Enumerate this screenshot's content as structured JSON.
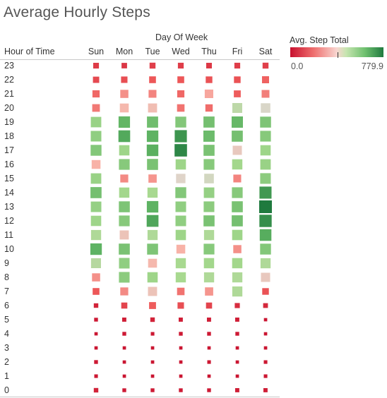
{
  "title": "Average Hourly Steps",
  "column_header": "Day Of Week",
  "row_header": "Hour of Time",
  "legend": {
    "title": "Avg. Step Total",
    "min_label": "0.0",
    "max_label": "779.9",
    "min": 0,
    "max": 779.9
  },
  "colors": {
    "low": "#c8102e",
    "mid": "#f5ded8",
    "high": "#1f7a3e"
  },
  "chart_data": {
    "type": "heatmap",
    "title": "Average Hourly Steps",
    "xlabel": "Day Of Week",
    "ylabel": "Hour of Time",
    "measure": "Avg. Step Total",
    "range": [
      0,
      779.9
    ],
    "days": [
      "Sun",
      "Mon",
      "Tue",
      "Wed",
      "Thu",
      "Fri",
      "Sat"
    ],
    "hours": [
      "23",
      "22",
      "21",
      "20",
      "19",
      "18",
      "17",
      "16",
      "15",
      "14",
      "13",
      "12",
      "11",
      "10",
      "9",
      "8",
      "7",
      "6",
      "5",
      "4",
      "3",
      "2",
      "1",
      "0"
    ],
    "values": [
      [
        90,
        80,
        100,
        95,
        85,
        95,
        100
      ],
      [
        120,
        130,
        150,
        150,
        140,
        140,
        170
      ],
      [
        180,
        250,
        230,
        180,
        290,
        160,
        220
      ],
      [
        210,
        320,
        330,
        200,
        190,
        420,
        380
      ],
      [
        480,
        600,
        570,
        530,
        560,
        590,
        540
      ],
      [
        500,
        640,
        610,
        700,
        580,
        560,
        520
      ],
      [
        530,
        470,
        620,
        740,
        550,
        350,
        470
      ],
      [
        310,
        520,
        550,
        470,
        520,
        460,
        480
      ],
      [
        480,
        240,
        260,
        370,
        390,
        230,
        510
      ],
      [
        560,
        460,
        450,
        530,
        490,
        520,
        690
      ],
      [
        490,
        540,
        610,
        500,
        510,
        550,
        779.9
      ],
      [
        470,
        520,
        650,
        500,
        550,
        560,
        720
      ],
      [
        440,
        340,
        440,
        470,
        440,
        470,
        630
      ],
      [
        610,
        550,
        540,
        310,
        520,
        250,
        530
      ],
      [
        430,
        500,
        320,
        450,
        460,
        460,
        440
      ],
      [
        250,
        510,
        470,
        450,
        440,
        440,
        350
      ],
      [
        150,
        240,
        340,
        200,
        260,
        440,
        140
      ],
      [
        40,
        110,
        160,
        130,
        110,
        60,
        50
      ],
      [
        20,
        30,
        40,
        30,
        30,
        30,
        10
      ],
      [
        10,
        20,
        15,
        20,
        20,
        20,
        10
      ],
      [
        10,
        10,
        10,
        10,
        10,
        10,
        10
      ],
      [
        20,
        10,
        10,
        10,
        15,
        10,
        15
      ],
      [
        15,
        10,
        10,
        10,
        10,
        10,
        15
      ],
      [
        40,
        20,
        20,
        20,
        20,
        30,
        30
      ]
    ]
  }
}
